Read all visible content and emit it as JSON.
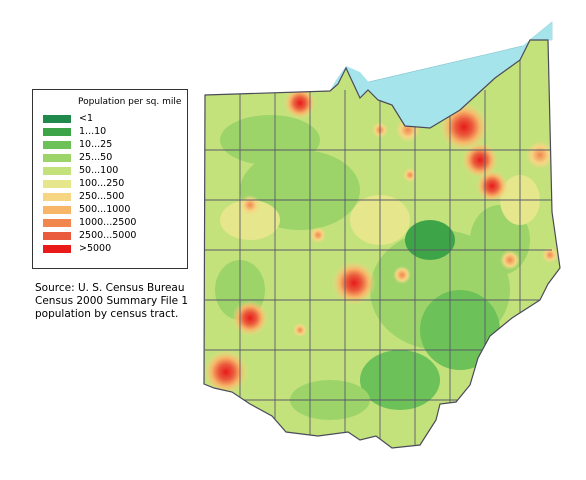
{
  "legend": {
    "title": "Population per sq. mile",
    "items": [
      {
        "label": "<1",
        "color": "#1f8a4c"
      },
      {
        "label": "1...10",
        "color": "#3da447"
      },
      {
        "label": "10...25",
        "color": "#6cc158"
      },
      {
        "label": "25...50",
        "color": "#9cd46a"
      },
      {
        "label": "50...100",
        "color": "#c4e27c"
      },
      {
        "label": "100...250",
        "color": "#e6e68c"
      },
      {
        "label": "250...500",
        "color": "#f6d683"
      },
      {
        "label": "500...1000",
        "color": "#f7b568"
      },
      {
        "label": "1000...2500",
        "color": "#f1874f"
      },
      {
        "label": "2500...5000",
        "color": "#ea5a3c"
      },
      {
        "label": ">5000",
        "color": "#e81a1a"
      }
    ]
  },
  "source": {
    "lines": [
      "Source: U. S. Census Bureau",
      "Census 2000 Summary File 1",
      "population by census tract."
    ]
  },
  "map": {
    "lake_color": "#a6e4ec",
    "county_line_color": "#5a5a6a"
  }
}
